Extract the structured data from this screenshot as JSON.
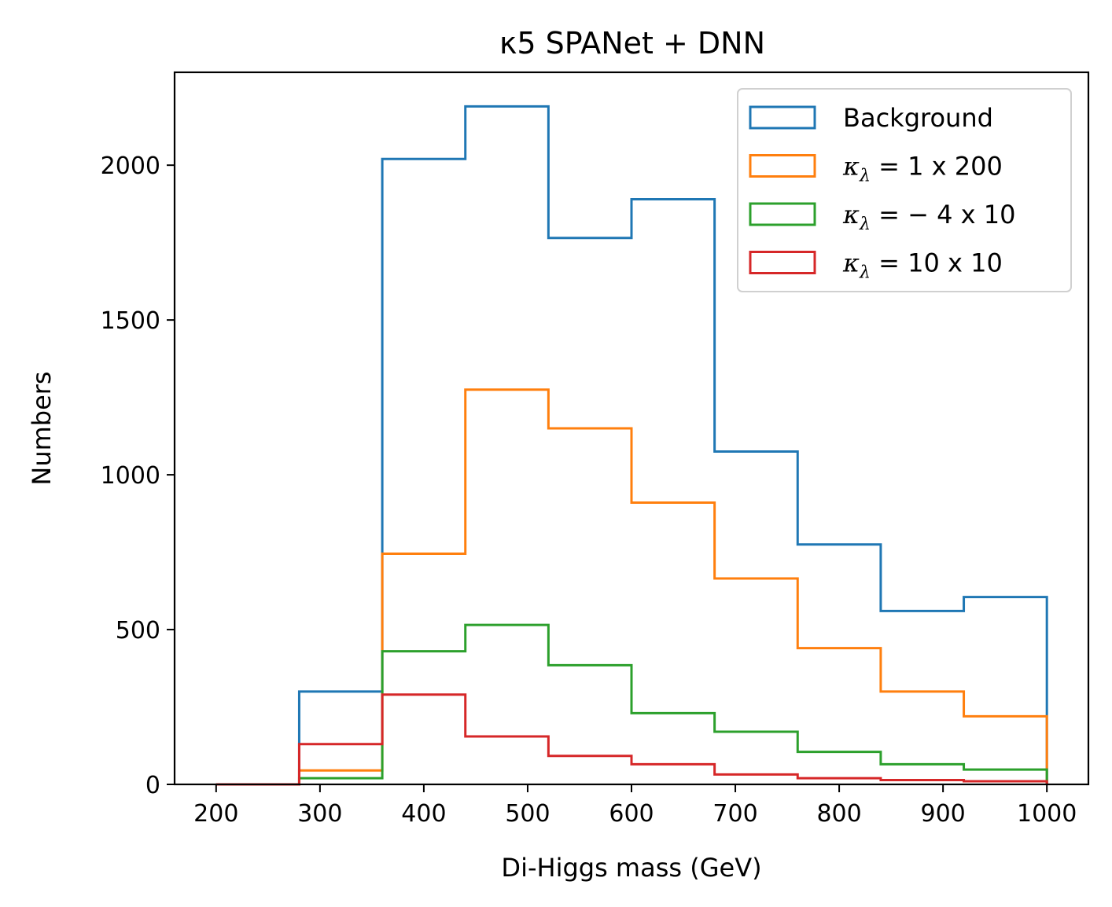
{
  "chart_data": {
    "type": "step-histogram",
    "title": "κ5 SPANet + DNN",
    "xlabel": "Di-Higgs mass (GeV)",
    "ylabel": "Numbers",
    "xlim": [
      160,
      1040
    ],
    "ylim": [
      0,
      2300
    ],
    "xticks": [
      200,
      300,
      400,
      500,
      600,
      700,
      800,
      900,
      1000
    ],
    "yticks": [
      0,
      500,
      1000,
      1500,
      2000
    ],
    "bin_edges": [
      200,
      280,
      360,
      440,
      520,
      600,
      680,
      760,
      840,
      920,
      1000
    ],
    "legend_position": "upper-right",
    "grid": false,
    "series": [
      {
        "name": "Background",
        "color": "#1f77b4",
        "values": [
          0,
          300,
          2020,
          2190,
          1765,
          1890,
          1075,
          775,
          560,
          605
        ]
      },
      {
        "name_prefix": "κ",
        "name_sub": "λ",
        "name_suffix": " = 1 x 200",
        "color": "#ff7f0e",
        "values": [
          0,
          45,
          745,
          1275,
          1150,
          910,
          665,
          440,
          300,
          220
        ]
      },
      {
        "name_prefix": "κ",
        "name_sub": "λ",
        "name_suffix": " = − 4 x 10",
        "color": "#2ca02c",
        "values": [
          0,
          20,
          430,
          515,
          385,
          230,
          170,
          105,
          65,
          48
        ]
      },
      {
        "name_prefix": "κ",
        "name_sub": "λ",
        "name_suffix": " = 10 x 10",
        "color": "#d62728",
        "values": [
          0,
          130,
          290,
          155,
          92,
          65,
          32,
          20,
          14,
          10
        ]
      }
    ]
  }
}
